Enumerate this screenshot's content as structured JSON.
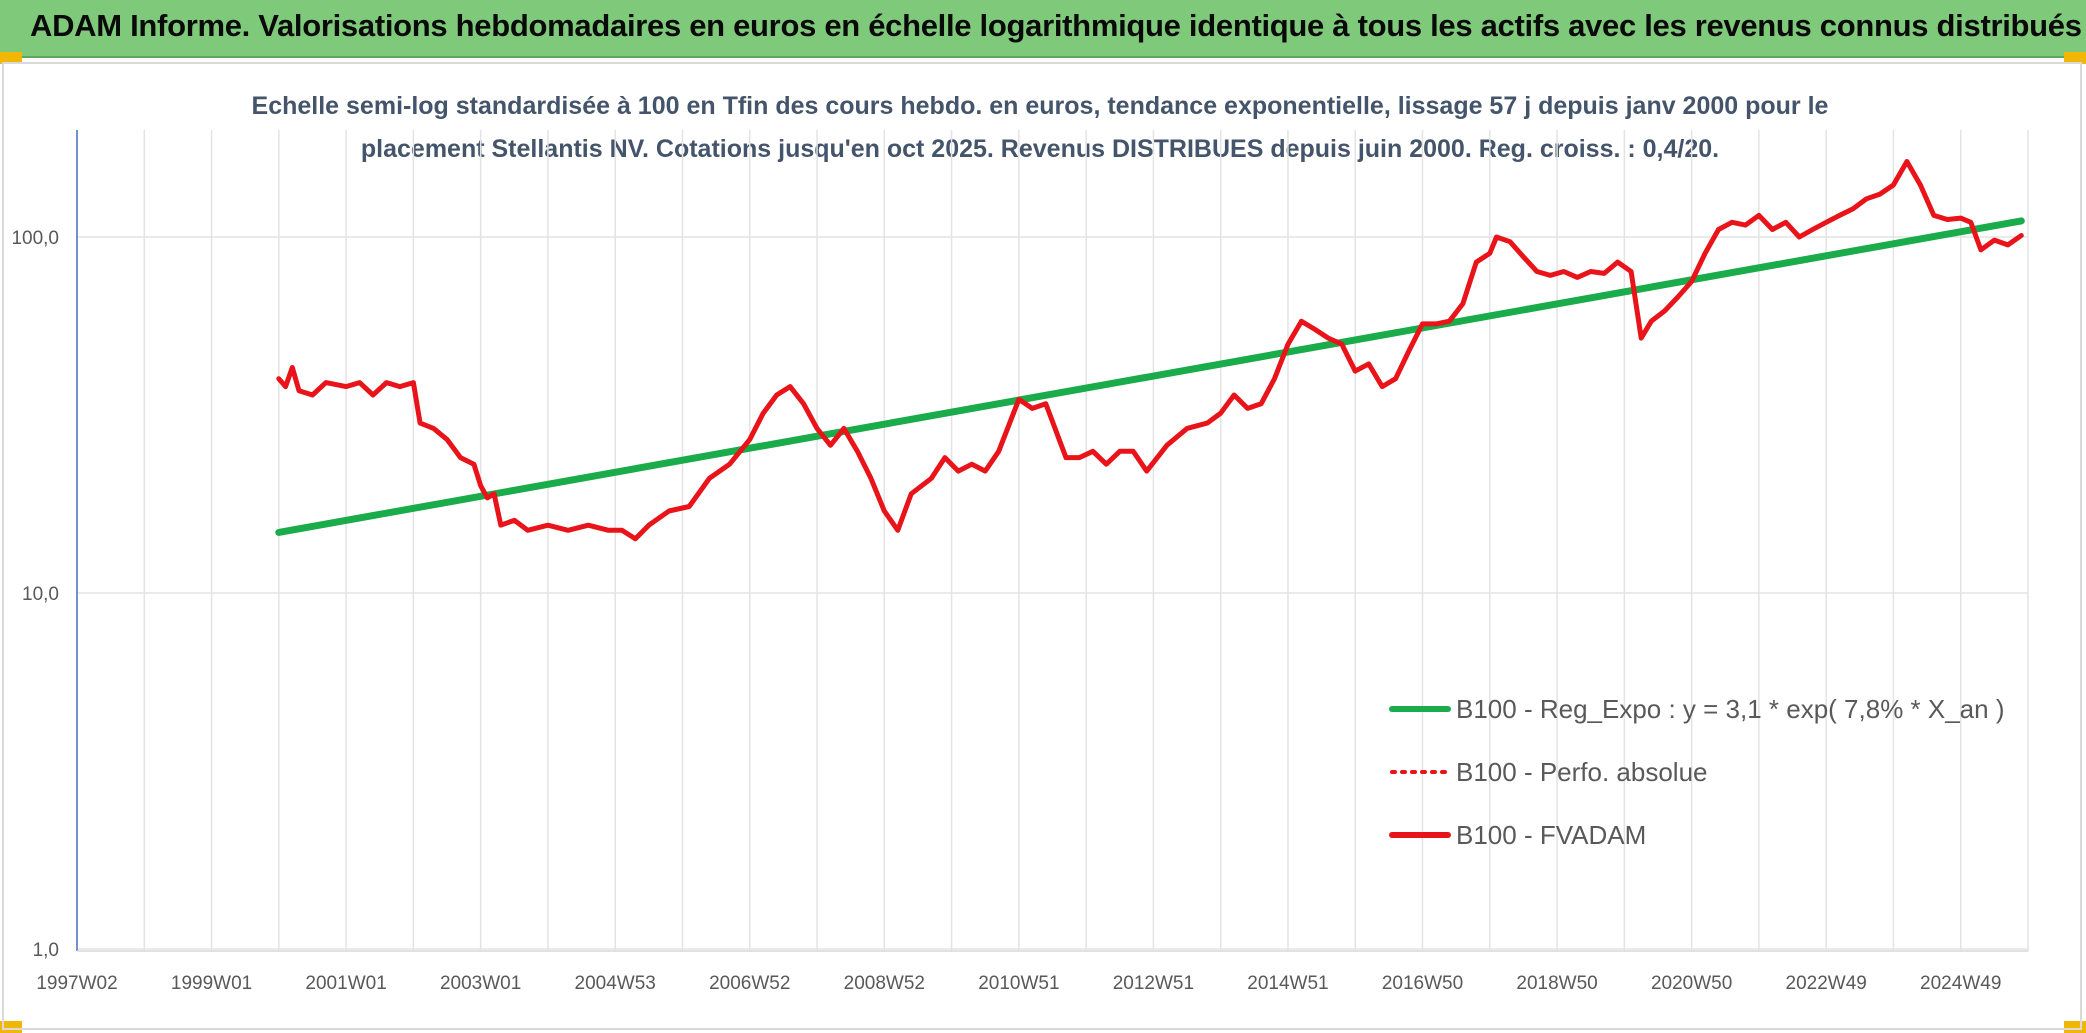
{
  "banner": {
    "title": "ADAM Informe. Valorisations hebdomadaires en euros en échelle logarithmique identique à tous les actifs avec les revenus connus distribués",
    "background": "#7fc97a",
    "corner_color": "#f2b705"
  },
  "chart_data": {
    "type": "line",
    "title_lines": [
      "Echelle semi-log standardisée à 100 en Tfin des cours hebdo. en euros, tendance exponentielle, lissage 57 j depuis janv 2000 pour le",
      "placement Stellantis NV. Cotations jusqu'en oct 2025. Revenus DISTRIBUES depuis juin 2000. Reg. croiss. : 0,4/20."
    ],
    "y_scale": "log",
    "ylim": [
      1,
      200
    ],
    "y_ticks": [
      {
        "value": 1,
        "label": "1,0"
      },
      {
        "value": 10,
        "label": "10,0"
      },
      {
        "value": 100,
        "label": "100,0"
      }
    ],
    "xlim": [
      1997.0,
      2026.0
    ],
    "x_ticks": [
      {
        "value": 1997.0,
        "label": "1997W02"
      },
      {
        "value": 1999.0,
        "label": "1999W01"
      },
      {
        "value": 2001.0,
        "label": "2001W01"
      },
      {
        "value": 2003.0,
        "label": "2003W01"
      },
      {
        "value": 2005.0,
        "label": "2004W53"
      },
      {
        "value": 2007.0,
        "label": "2006W52"
      },
      {
        "value": 2009.0,
        "label": "2008W52"
      },
      {
        "value": 2011.0,
        "label": "2010W51"
      },
      {
        "value": 2013.0,
        "label": "2012W51"
      },
      {
        "value": 2015.0,
        "label": "2014W51"
      },
      {
        "value": 2017.0,
        "label": "2016W50"
      },
      {
        "value": 2019.0,
        "label": "2018W50"
      },
      {
        "value": 2021.0,
        "label": "2020W50"
      },
      {
        "value": 2023.0,
        "label": "2022W49"
      },
      {
        "value": 2025.0,
        "label": "2024W49"
      }
    ],
    "grid": true,
    "legend_position": "right-bottom",
    "series": [
      {
        "name": "B100 - Reg_Expo : y = 3,1 * exp( 7,8% *  X_an )",
        "color": "#1aab4a",
        "style": "solid",
        "points": [
          [
            2000.0,
            14.8
          ],
          [
            2025.9,
            111
          ]
        ]
      },
      {
        "name": "B100 - Perfo. absolue",
        "color": "#e8141a",
        "style": "dotted",
        "points": []
      },
      {
        "name": "B100 - FVADAM",
        "color": "#e8141a",
        "style": "solid",
        "points": [
          [
            2000.0,
            40
          ],
          [
            2000.1,
            38
          ],
          [
            2000.2,
            43
          ],
          [
            2000.3,
            37
          ],
          [
            2000.5,
            36
          ],
          [
            2000.7,
            39
          ],
          [
            2001.0,
            38
          ],
          [
            2001.2,
            39
          ],
          [
            2001.4,
            36
          ],
          [
            2001.6,
            39
          ],
          [
            2001.8,
            38
          ],
          [
            2002.0,
            39
          ],
          [
            2002.1,
            30
          ],
          [
            2002.3,
            29
          ],
          [
            2002.5,
            27
          ],
          [
            2002.7,
            24
          ],
          [
            2002.9,
            23
          ],
          [
            2003.0,
            20
          ],
          [
            2003.1,
            18.5
          ],
          [
            2003.2,
            19
          ],
          [
            2003.3,
            15.5
          ],
          [
            2003.5,
            16
          ],
          [
            2003.7,
            15
          ],
          [
            2004.0,
            15.5
          ],
          [
            2004.3,
            15
          ],
          [
            2004.6,
            15.5
          ],
          [
            2004.9,
            15
          ],
          [
            2005.1,
            15
          ],
          [
            2005.3,
            14.2
          ],
          [
            2005.5,
            15.5
          ],
          [
            2005.8,
            17
          ],
          [
            2006.1,
            17.5
          ],
          [
            2006.4,
            21
          ],
          [
            2006.7,
            23
          ],
          [
            2007.0,
            27
          ],
          [
            2007.2,
            32
          ],
          [
            2007.4,
            36
          ],
          [
            2007.6,
            38
          ],
          [
            2007.8,
            34
          ],
          [
            2008.0,
            29
          ],
          [
            2008.2,
            26
          ],
          [
            2008.4,
            29
          ],
          [
            2008.6,
            25
          ],
          [
            2008.8,
            21
          ],
          [
            2009.0,
            17
          ],
          [
            2009.2,
            15
          ],
          [
            2009.4,
            19
          ],
          [
            2009.7,
            21
          ],
          [
            2009.9,
            24
          ],
          [
            2010.1,
            22
          ],
          [
            2010.3,
            23
          ],
          [
            2010.5,
            22
          ],
          [
            2010.7,
            25
          ],
          [
            2011.0,
            35
          ],
          [
            2011.2,
            33
          ],
          [
            2011.4,
            34
          ],
          [
            2011.7,
            24
          ],
          [
            2011.9,
            24
          ],
          [
            2012.1,
            25
          ],
          [
            2012.3,
            23
          ],
          [
            2012.5,
            25
          ],
          [
            2012.7,
            25
          ],
          [
            2012.9,
            22
          ],
          [
            2013.2,
            26
          ],
          [
            2013.5,
            29
          ],
          [
            2013.8,
            30
          ],
          [
            2014.0,
            32
          ],
          [
            2014.2,
            36
          ],
          [
            2014.4,
            33
          ],
          [
            2014.6,
            34
          ],
          [
            2014.8,
            40
          ],
          [
            2015.0,
            50
          ],
          [
            2015.2,
            58
          ],
          [
            2015.4,
            55
          ],
          [
            2015.6,
            52
          ],
          [
            2015.8,
            50
          ],
          [
            2016.0,
            42
          ],
          [
            2016.2,
            44
          ],
          [
            2016.4,
            38
          ],
          [
            2016.6,
            40
          ],
          [
            2016.8,
            48
          ],
          [
            2017.0,
            57
          ],
          [
            2017.2,
            57
          ],
          [
            2017.4,
            58
          ],
          [
            2017.6,
            65
          ],
          [
            2017.8,
            85
          ],
          [
            2018.0,
            90
          ],
          [
            2018.1,
            100
          ],
          [
            2018.3,
            97
          ],
          [
            2018.5,
            88
          ],
          [
            2018.7,
            80
          ],
          [
            2018.9,
            78
          ],
          [
            2019.1,
            80
          ],
          [
            2019.3,
            77
          ],
          [
            2019.5,
            80
          ],
          [
            2019.7,
            79
          ],
          [
            2019.9,
            85
          ],
          [
            2020.1,
            80
          ],
          [
            2020.25,
            52
          ],
          [
            2020.4,
            58
          ],
          [
            2020.6,
            62
          ],
          [
            2020.8,
            68
          ],
          [
            2021.0,
            75
          ],
          [
            2021.2,
            90
          ],
          [
            2021.4,
            105
          ],
          [
            2021.6,
            110
          ],
          [
            2021.8,
            108
          ],
          [
            2022.0,
            115
          ],
          [
            2022.2,
            105
          ],
          [
            2022.4,
            110
          ],
          [
            2022.6,
            100
          ],
          [
            2022.8,
            105
          ],
          [
            2023.0,
            110
          ],
          [
            2023.2,
            115
          ],
          [
            2023.4,
            120
          ],
          [
            2023.6,
            128
          ],
          [
            2023.8,
            132
          ],
          [
            2024.0,
            140
          ],
          [
            2024.2,
            163
          ],
          [
            2024.4,
            140
          ],
          [
            2024.6,
            115
          ],
          [
            2024.8,
            112
          ],
          [
            2025.0,
            113
          ],
          [
            2025.15,
            110
          ],
          [
            2025.3,
            92
          ],
          [
            2025.5,
            98
          ],
          [
            2025.7,
            95
          ],
          [
            2025.9,
            101
          ]
        ]
      }
    ]
  }
}
